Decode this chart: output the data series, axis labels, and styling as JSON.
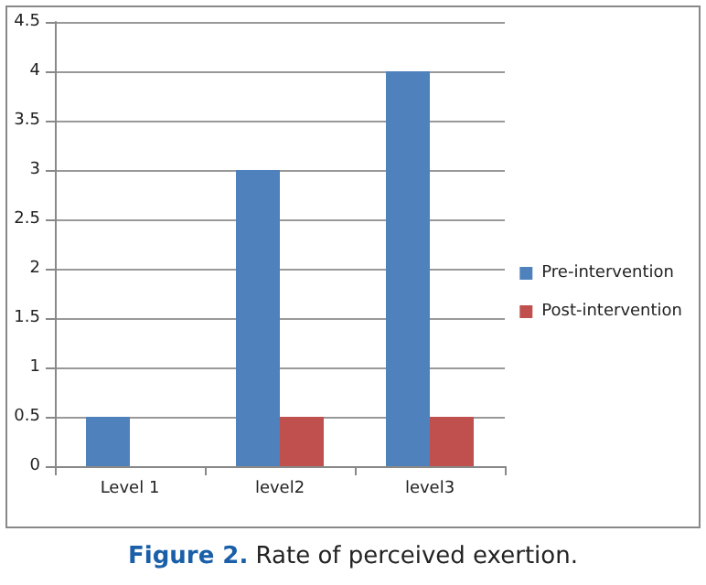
{
  "chart_data": {
    "type": "bar",
    "title": "Figure 2. Rate of perceived exertion.",
    "categories": [
      "Level 1",
      "level2",
      "level3"
    ],
    "series": [
      {
        "name": "Pre-intervention",
        "color": "#4f81bd",
        "values": [
          0.5,
          3,
          4
        ]
      },
      {
        "name": "Post-intervention",
        "color": "#c0504d",
        "values": [
          0,
          0.5,
          0.5
        ]
      }
    ],
    "ylim": [
      0,
      4.5
    ],
    "yticks": [
      0,
      0.5,
      1,
      1.5,
      2,
      2.5,
      3,
      3.5,
      4,
      4.5
    ],
    "grid": "y",
    "legend": "right"
  }
}
